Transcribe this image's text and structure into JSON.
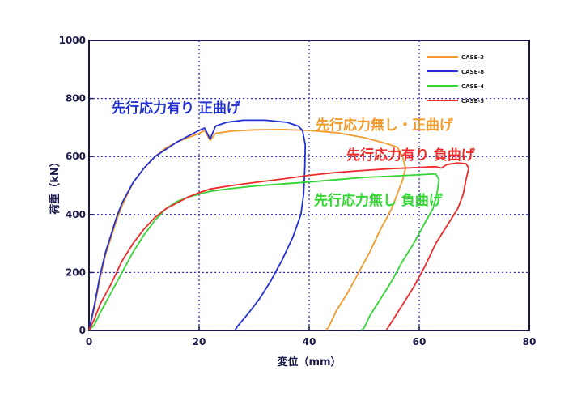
{
  "chart_data": {
    "type": "line",
    "title": "",
    "xlabel": "変位（mm）",
    "ylabel": "荷重（kN）",
    "xlim": [
      0,
      80
    ],
    "ylim": [
      0,
      1000
    ],
    "x_ticks": [
      "0",
      "20",
      "40",
      "60",
      "80"
    ],
    "y_ticks": [
      "0",
      "200",
      "400",
      "600",
      "800",
      "1000"
    ],
    "grid": true,
    "legend_position": "top-right",
    "series": [
      {
        "name": "CASE-3",
        "color": "#f39a2b",
        "points": [
          [
            0,
            0
          ],
          [
            1,
            80
          ],
          [
            2,
            180
          ],
          [
            3,
            260
          ],
          [
            4,
            320
          ],
          [
            5,
            380
          ],
          [
            6,
            430
          ],
          [
            8,
            510
          ],
          [
            10,
            560
          ],
          [
            12,
            600
          ],
          [
            14,
            630
          ],
          [
            16,
            650
          ],
          [
            18,
            665
          ],
          [
            20,
            680
          ],
          [
            21,
            690
          ],
          [
            22,
            655
          ],
          [
            23,
            680
          ],
          [
            26,
            688
          ],
          [
            30,
            692
          ],
          [
            35,
            693
          ],
          [
            40,
            690
          ],
          [
            45,
            682
          ],
          [
            50,
            665
          ],
          [
            54,
            645
          ],
          [
            56,
            632
          ],
          [
            57,
            600
          ],
          [
            57.5,
            560
          ],
          [
            57,
            520
          ],
          [
            56,
            470
          ],
          [
            55,
            420
          ],
          [
            53,
            350
          ],
          [
            51,
            270
          ],
          [
            49,
            200
          ],
          [
            47,
            130
          ],
          [
            45,
            70
          ],
          [
            43.5,
            10
          ],
          [
            43,
            0
          ]
        ]
      },
      {
        "name": "CASE-8",
        "color": "#2230d4",
        "points": [
          [
            0,
            0
          ],
          [
            1,
            90
          ],
          [
            2,
            190
          ],
          [
            3,
            270
          ],
          [
            4,
            330
          ],
          [
            5,
            390
          ],
          [
            6,
            440
          ],
          [
            8,
            510
          ],
          [
            10,
            560
          ],
          [
            12,
            600
          ],
          [
            14,
            625
          ],
          [
            16,
            650
          ],
          [
            18,
            670
          ],
          [
            20,
            690
          ],
          [
            21,
            698
          ],
          [
            22,
            660
          ],
          [
            23,
            705
          ],
          [
            25,
            718
          ],
          [
            28,
            725
          ],
          [
            32,
            725
          ],
          [
            36,
            718
          ],
          [
            38,
            705
          ],
          [
            38.8,
            690
          ],
          [
            39.3,
            640
          ],
          [
            39.2,
            560
          ],
          [
            39,
            470
          ],
          [
            38.5,
            400
          ],
          [
            37,
            320
          ],
          [
            35,
            240
          ],
          [
            33,
            170
          ],
          [
            31,
            110
          ],
          [
            29,
            60
          ],
          [
            27,
            15
          ],
          [
            26.5,
            0
          ]
        ]
      },
      {
        "name": "CASE-4",
        "color": "#33d633",
        "points": [
          [
            0,
            0
          ],
          [
            1,
            20
          ],
          [
            2,
            60
          ],
          [
            4,
            130
          ],
          [
            6,
            200
          ],
          [
            8,
            270
          ],
          [
            10,
            330
          ],
          [
            12,
            380
          ],
          [
            14,
            420
          ],
          [
            16,
            445
          ],
          [
            18,
            460
          ],
          [
            20,
            470
          ],
          [
            22,
            480
          ],
          [
            26,
            490
          ],
          [
            30,
            498
          ],
          [
            35,
            505
          ],
          [
            40,
            512
          ],
          [
            45,
            520
          ],
          [
            50,
            528
          ],
          [
            55,
            532
          ],
          [
            58,
            535
          ],
          [
            61,
            538
          ],
          [
            63,
            540
          ],
          [
            63.6,
            520
          ],
          [
            63.2,
            470
          ],
          [
            62.5,
            420
          ],
          [
            61,
            370
          ],
          [
            59,
            300
          ],
          [
            57,
            240
          ],
          [
            55,
            170
          ],
          [
            53,
            110
          ],
          [
            51,
            50
          ],
          [
            50,
            10
          ],
          [
            49.5,
            0
          ]
        ]
      },
      {
        "name": "CASE-5",
        "color": "#ee2a2a",
        "points": [
          [
            0,
            0
          ],
          [
            1,
            40
          ],
          [
            2,
            90
          ],
          [
            4,
            160
          ],
          [
            6,
            240
          ],
          [
            8,
            300
          ],
          [
            10,
            350
          ],
          [
            12,
            390
          ],
          [
            14,
            420
          ],
          [
            16,
            440
          ],
          [
            18,
            460
          ],
          [
            20,
            475
          ],
          [
            22,
            488
          ],
          [
            26,
            500
          ],
          [
            30,
            510
          ],
          [
            35,
            522
          ],
          [
            40,
            535
          ],
          [
            45,
            545
          ],
          [
            50,
            552
          ],
          [
            55,
            558
          ],
          [
            60,
            562
          ],
          [
            63,
            565
          ],
          [
            64,
            560
          ],
          [
            65,
            572
          ],
          [
            67,
            578
          ],
          [
            68.5,
            575
          ],
          [
            69,
            560
          ],
          [
            68.5,
            520
          ],
          [
            68,
            470
          ],
          [
            67,
            420
          ],
          [
            65,
            360
          ],
          [
            63,
            300
          ],
          [
            61,
            220
          ],
          [
            59,
            150
          ],
          [
            57,
            90
          ],
          [
            55,
            30
          ],
          [
            54,
            0
          ]
        ]
      }
    ],
    "annotations": [
      {
        "text": "先行応力有り 正曲げ",
        "color": "#2230d4"
      },
      {
        "text": "先行応力無し・正曲げ",
        "color": "#f39a2b"
      },
      {
        "text": "先行応力有り 負曲げ",
        "color": "#ee2a2a"
      },
      {
        "text": "先行応力無し 負曲げ",
        "color": "#33d633"
      }
    ]
  }
}
